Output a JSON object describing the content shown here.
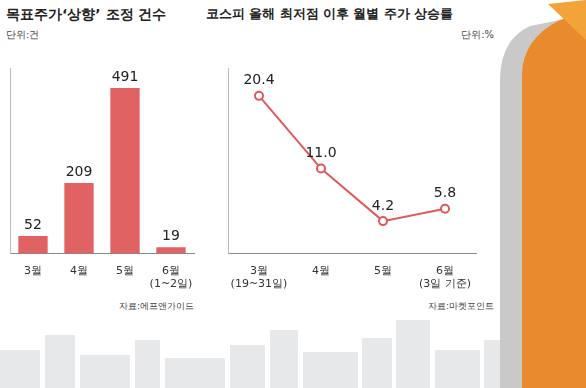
{
  "chart_data": [
    {
      "type": "bar",
      "title": "목표주가‘상향’ 조정 건수",
      "unit": "단위:건",
      "source": "자료:에프앤가이드",
      "categories": [
        "3월",
        "4월",
        "5월",
        "6월(1~2일)"
      ],
      "values": [
        52,
        209,
        491,
        19
      ],
      "color": "#e06262",
      "ylim": [
        0,
        550
      ],
      "data_labels": true,
      "tick_labels": "x",
      "grid": false
    },
    {
      "type": "line",
      "title": "코스피 올해 최저점 이후 월별 주가 상승률",
      "unit": "단위:%",
      "source": "자료:마켓포인트",
      "categories": [
        "3월(19~31일)",
        "4월",
        "5월",
        "6월(3일 기준)"
      ],
      "values": [
        20.4,
        11.0,
        4.2,
        5.8
      ],
      "value_labels": [
        "20.4",
        "11.0",
        "4.2",
        "5.8"
      ],
      "color": "#e05a5a",
      "marker": "circle",
      "ylim": [
        0,
        24
      ],
      "data_labels": true,
      "tick_labels": "x",
      "grid": false
    }
  ]
}
